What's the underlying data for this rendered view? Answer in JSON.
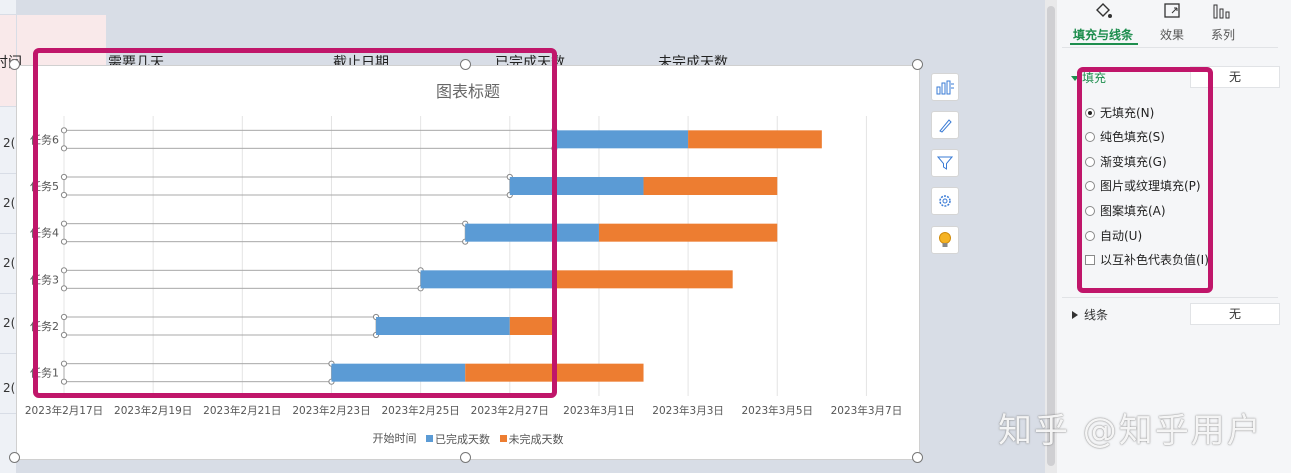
{
  "sheet": {
    "column_headers": [
      "时间",
      "需要几天",
      "截止日期",
      "已完成天数",
      "未完成天数"
    ],
    "row_labels": [
      "2(",
      "2(",
      "2(",
      "2(",
      "2("
    ]
  },
  "chart": {
    "title": "图表标题"
  },
  "chart_data": {
    "type": "bar",
    "orientation": "horizontal",
    "stacked": true,
    "title": "图表标题",
    "categories": [
      "任务1",
      "任务2",
      "任务3",
      "任务4",
      "任务5",
      "任务6"
    ],
    "x_tick_labels": [
      "2023年2月17日",
      "2023年2月19日",
      "2023年2月21日",
      "2023年2月23日",
      "2023年2月25日",
      "2023年2月27日",
      "2023年3月1日",
      "2023年3月3日",
      "2023年3月5日",
      "2023年3月7日"
    ],
    "xlim": [
      "2023-02-17",
      "2023-03-08"
    ],
    "series": [
      {
        "name": "开始时间",
        "values": [
          "2023-02-23",
          "2023-02-24",
          "2023-02-25",
          "2023-02-26",
          "2023-02-27",
          "2023-02-28"
        ],
        "color": "none"
      },
      {
        "name": "已完成天数",
        "values": [
          3,
          3,
          3,
          3,
          3,
          3
        ],
        "color": "#5b9bd5"
      },
      {
        "name": "未完成天数",
        "values": [
          4,
          1,
          4,
          4,
          3,
          3
        ],
        "color": "#ed7d31"
      }
    ],
    "legend": "bottom",
    "grid": true
  },
  "toolbar": {
    "buttons": [
      "chart-elements",
      "chart-style",
      "chart-filter",
      "chart-settings",
      "chart-tips"
    ]
  },
  "panel": {
    "tabs": [
      {
        "label": "填充与线条"
      },
      {
        "label": "效果"
      },
      {
        "label": "系列"
      }
    ],
    "fill_section": {
      "label": "填充",
      "value": "无"
    },
    "fill_options": [
      {
        "label": "无填充(N)",
        "selected": true
      },
      {
        "label": "纯色填充(S)",
        "selected": false
      },
      {
        "label": "渐变填充(G)",
        "selected": false
      },
      {
        "label": "图片或纹理填充(P)",
        "selected": false
      },
      {
        "label": "图案填充(A)",
        "selected": false
      },
      {
        "label": "自动(U)",
        "selected": false
      }
    ],
    "invert_label": "以互补色代表负值(I)",
    "line_section": {
      "label": "线条",
      "value": "无"
    }
  },
  "watermark": "知乎 @知乎用户",
  "colors": {
    "accent_green": "#1e8e4e",
    "highlight": "#c0166a",
    "completed": "#5b9bd5",
    "remaining": "#ed7d31"
  }
}
